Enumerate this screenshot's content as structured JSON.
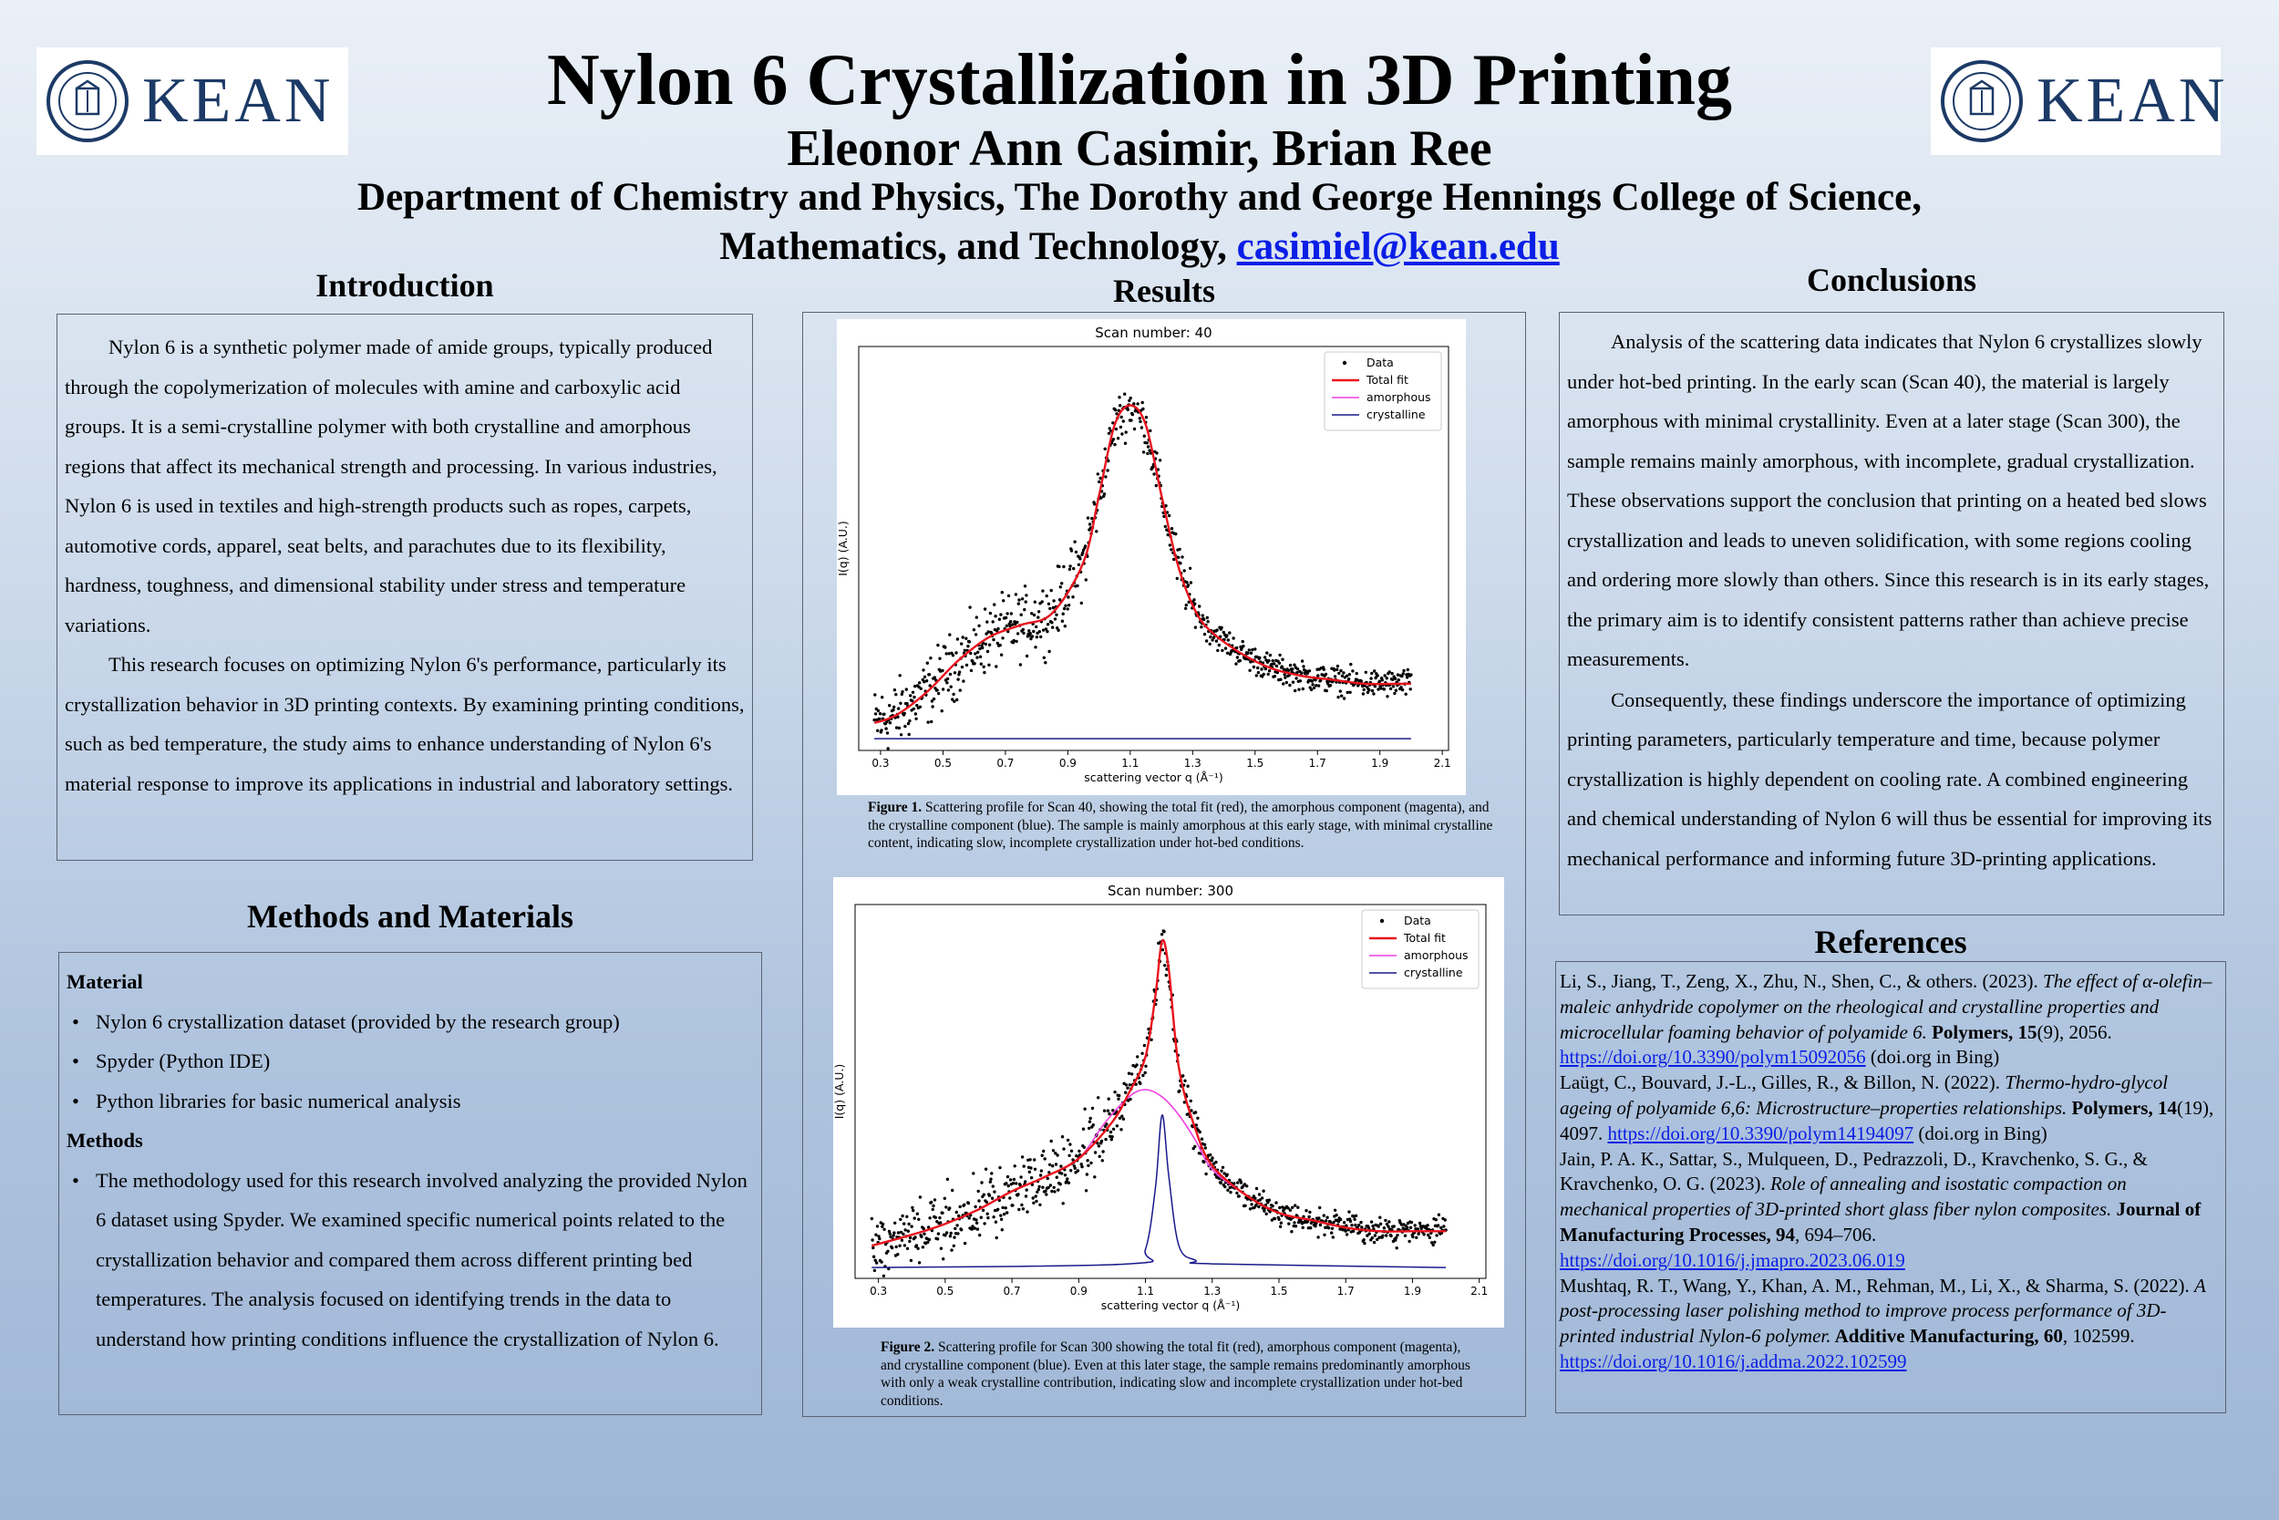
{
  "header": {
    "title": "Nylon 6 Crystallization in 3D Printing",
    "authors": "Eleonor Ann Casimir, Brian Ree",
    "affiliation_line1": "Department of Chemistry and Physics, The Dorothy and George Hennings College of Science,",
    "affiliation_line2": "Mathematics, and Technology, ",
    "email": "casimiel@kean.edu",
    "logo_text": "KEAN",
    "seal_text": "KEAN UNIVERSITY"
  },
  "introduction": {
    "heading": "Introduction",
    "paragraphs": [
      "Nylon 6 is a synthetic polymer made of amide groups, typically produced through the copolymerization of molecules with amine and carboxylic acid groups. It is a semi-crystalline polymer with both crystalline and amorphous regions that affect its mechanical strength and processing. In various industries, Nylon 6 is used in textiles and high-strength products such as ropes, carpets, automotive cords, apparel, seat belts, and parachutes due to its flexibility, hardness, toughness, and dimensional stability under stress and temperature variations.",
      "This research focuses on optimizing Nylon 6's performance, particularly its crystallization behavior in 3D printing contexts. By examining printing conditions, such as bed temperature, the study aims to enhance understanding of Nylon 6's material response to improve its applications in industrial and laboratory settings."
    ]
  },
  "methods": {
    "heading": "Methods and Materials",
    "material_label": "Material",
    "material_items": [
      "Nylon 6 crystallization dataset (provided by the research group)",
      "Spyder (Python IDE)",
      "Python libraries for basic numerical analysis"
    ],
    "methods_label": "Methods",
    "methods_items": [
      "The methodology used for this research involved analyzing the provided Nylon 6 dataset using Spyder. We examined specific numerical points related to the crystallization behavior and compared them across different printing bed temperatures. The analysis focused on identifying trends in the data to understand how printing conditions influence the crystallization of Nylon 6."
    ]
  },
  "results": {
    "heading": "Results",
    "figure1_caption_label": "Figure 1.",
    "figure1_caption": " Scattering profile for Scan 40, showing the total fit (red), the amorphous component (magenta), and the crystalline component (blue). The sample is mainly amorphous at this early stage, with minimal crystalline content, indicating slow, incomplete crystallization under hot-bed conditions.",
    "figure2_caption_label": "Figure 2.",
    "figure2_caption": " Scattering profile for Scan 300 showing the total fit (red), amorphous component (magenta), and crystalline component (blue). Even at this later stage, the sample remains predominantly amorphous with only a weak crystalline contribution, indicating slow and incomplete crystallization under hot-bed conditions."
  },
  "conclusions": {
    "heading": "Conclusions",
    "paragraphs": [
      "Analysis of the scattering data indicates that Nylon 6 crystallizes slowly under hot-bed printing. In the early scan (Scan 40), the material is largely amorphous with minimal crystallinity. Even at a later stage (Scan 300), the sample remains mainly amorphous, with incomplete, gradual crystallization. These observations support the conclusion that printing on a heated bed slows crystallization and leads to uneven solidification, with some regions cooling and ordering more slowly than others. Since this research is in its early stages, the primary aim is to identify consistent patterns rather than achieve precise measurements.",
      "Consequently, these findings underscore the importance of optimizing printing parameters, particularly temperature and time, because polymer crystallization is highly dependent on cooling rate. A combined engineering and chemical understanding of Nylon 6 will thus be essential for improving its mechanical performance and informing future 3D-printing applications."
    ]
  },
  "references": {
    "heading": "References",
    "items": [
      {
        "pre": "Li, S., Jiang, T., Zeng, X., Zhu, N., Shen, C., & others. (2023). ",
        "title": "The effect of α-olefin–maleic anhydride copolymer on the rheological and crystalline properties and microcellular foaming behavior of polyamide 6.",
        "journal": " Polymers, 15",
        "post": "(9), 2056. ",
        "link": "https://doi.org/10.3390/polym15092056",
        "tail": " (doi.org in Bing)"
      },
      {
        "pre": "Laügt, C., Bouvard, J.-L., Gilles, R., & Billon, N. (2022). ",
        "title": "Thermo-hydro-glycol ageing of polyamide 6,6: Microstructure–properties relationships.",
        "journal": " Polymers, 14",
        "post": "(19), 4097. ",
        "link": "https://doi.org/10.3390/polym14194097",
        "tail": " (doi.org in Bing)"
      },
      {
        "pre": "Jain, P. A. K., Sattar, S., Mulqueen, D., Pedrazzoli, D., Kravchenko, S. G., & Kravchenko, O. G. (2023). ",
        "title": "Role of annealing and isostatic compaction on mechanical properties of 3D-printed short glass fiber nylon composites.",
        "journal": " Journal of Manufacturing Processes, 94",
        "post": ", 694–706. ",
        "link": "https://doi.org/10.1016/j.jmapro.2023.06.019",
        "tail": ""
      },
      {
        "pre": "Mushtaq, R. T., Wang, Y., Khan, A. M., Rehman, M., Li, X., & Sharma, S. (2022). ",
        "title": "A post-processing laser polishing method to improve process performance of 3D-printed industrial Nylon-6 polymer.",
        "journal": " Additive Manufacturing, 60",
        "post": ", 102599. ",
        "link": "https://doi.org/10.1016/j.addma.2022.102599",
        "tail": ""
      }
    ]
  },
  "colors": {
    "data": "#000000",
    "total_fit": "#e8141e",
    "amorphous": "#ee3ee0",
    "crystalline": "#1a1a8c",
    "link": "#0a1ee6"
  },
  "chart_data": [
    {
      "type": "scatter",
      "title": "Scan number: 40",
      "xlabel": "scattering vector q (Å⁻¹)",
      "ylabel": "I(q) (A.U.)",
      "x_ticks": [
        "0.3",
        "0.5",
        "0.7",
        "0.9",
        "1.1",
        "1.3",
        "1.5",
        "1.7",
        "1.9",
        "2.1"
      ],
      "xlim": [
        0.23,
        2.12
      ],
      "ylim": [
        -0.03,
        1.0
      ],
      "legend": [
        "Data",
        "Total fit",
        "amorphous",
        "crystalline"
      ],
      "legend_position": "top-right",
      "series": [
        {
          "name": "Total fit",
          "x": [
            0.28,
            0.35,
            0.45,
            0.55,
            0.65,
            0.75,
            0.85,
            0.95,
            1.0,
            1.05,
            1.1,
            1.15,
            1.2,
            1.25,
            1.3,
            1.35,
            1.45,
            1.55,
            1.65,
            1.75,
            1.85,
            1.95,
            2.0
          ],
          "y": [
            0.04,
            0.06,
            0.12,
            0.2,
            0.26,
            0.29,
            0.32,
            0.45,
            0.62,
            0.8,
            0.85,
            0.8,
            0.62,
            0.45,
            0.34,
            0.28,
            0.22,
            0.18,
            0.16,
            0.15,
            0.14,
            0.14,
            0.14
          ]
        },
        {
          "name": "amorphous",
          "x": [
            0.28,
            0.35,
            0.45,
            0.55,
            0.65,
            0.75,
            0.85,
            0.95,
            1.0,
            1.05,
            1.1,
            1.15,
            1.2,
            1.25,
            1.3,
            1.35,
            1.45,
            1.55,
            1.65,
            1.75,
            1.85,
            1.95,
            2.0
          ],
          "y": [
            0.04,
            0.06,
            0.12,
            0.2,
            0.26,
            0.29,
            0.32,
            0.45,
            0.62,
            0.8,
            0.85,
            0.8,
            0.62,
            0.45,
            0.34,
            0.28,
            0.22,
            0.18,
            0.16,
            0.15,
            0.14,
            0.14,
            0.14
          ]
        },
        {
          "name": "crystalline",
          "x": [
            0.28,
            2.0
          ],
          "y": [
            0.0,
            0.0
          ]
        }
      ]
    },
    {
      "type": "scatter",
      "title": "Scan number: 300",
      "xlabel": "scattering vector q (Å⁻¹)",
      "ylabel": "I(q) (A.U.)",
      "x_ticks": [
        "0.3",
        "0.5",
        "0.7",
        "0.9",
        "1.1",
        "1.3",
        "1.5",
        "1.7",
        "1.9",
        "2.1"
      ],
      "xlim": [
        0.23,
        2.12
      ],
      "ylim": [
        -0.03,
        1.0
      ],
      "legend": [
        "Data",
        "Total fit",
        "amorphous",
        "crystalline"
      ],
      "legend_position": "top-right",
      "series": [
        {
          "name": "Total fit",
          "x": [
            0.28,
            0.4,
            0.5,
            0.6,
            0.7,
            0.8,
            0.9,
            1.0,
            1.05,
            1.1,
            1.13,
            1.15,
            1.17,
            1.2,
            1.25,
            1.3,
            1.4,
            1.5,
            1.6,
            1.7,
            1.8,
            1.9,
            2.0
          ],
          "y": [
            0.06,
            0.09,
            0.12,
            0.16,
            0.21,
            0.25,
            0.3,
            0.4,
            0.48,
            0.58,
            0.75,
            0.9,
            0.82,
            0.55,
            0.38,
            0.28,
            0.2,
            0.15,
            0.13,
            0.11,
            0.1,
            0.1,
            0.1
          ]
        },
        {
          "name": "amorphous",
          "x": [
            0.28,
            0.4,
            0.5,
            0.6,
            0.7,
            0.8,
            0.9,
            0.98,
            1.05,
            1.1,
            1.15,
            1.2,
            1.25,
            1.3,
            1.4,
            1.5,
            1.6,
            1.7,
            1.8,
            1.9,
            2.0
          ],
          "y": [
            0.06,
            0.09,
            0.12,
            0.16,
            0.21,
            0.25,
            0.3,
            0.4,
            0.47,
            0.49,
            0.47,
            0.42,
            0.35,
            0.27,
            0.2,
            0.15,
            0.13,
            0.11,
            0.1,
            0.1,
            0.1
          ]
        },
        {
          "name": "crystalline",
          "x": [
            0.28,
            1.05,
            1.1,
            1.13,
            1.15,
            1.17,
            1.2,
            1.25,
            1.3,
            2.0
          ],
          "y": [
            0.0,
            0.01,
            0.05,
            0.22,
            0.42,
            0.25,
            0.06,
            0.02,
            0.01,
            0.0
          ]
        }
      ]
    }
  ]
}
